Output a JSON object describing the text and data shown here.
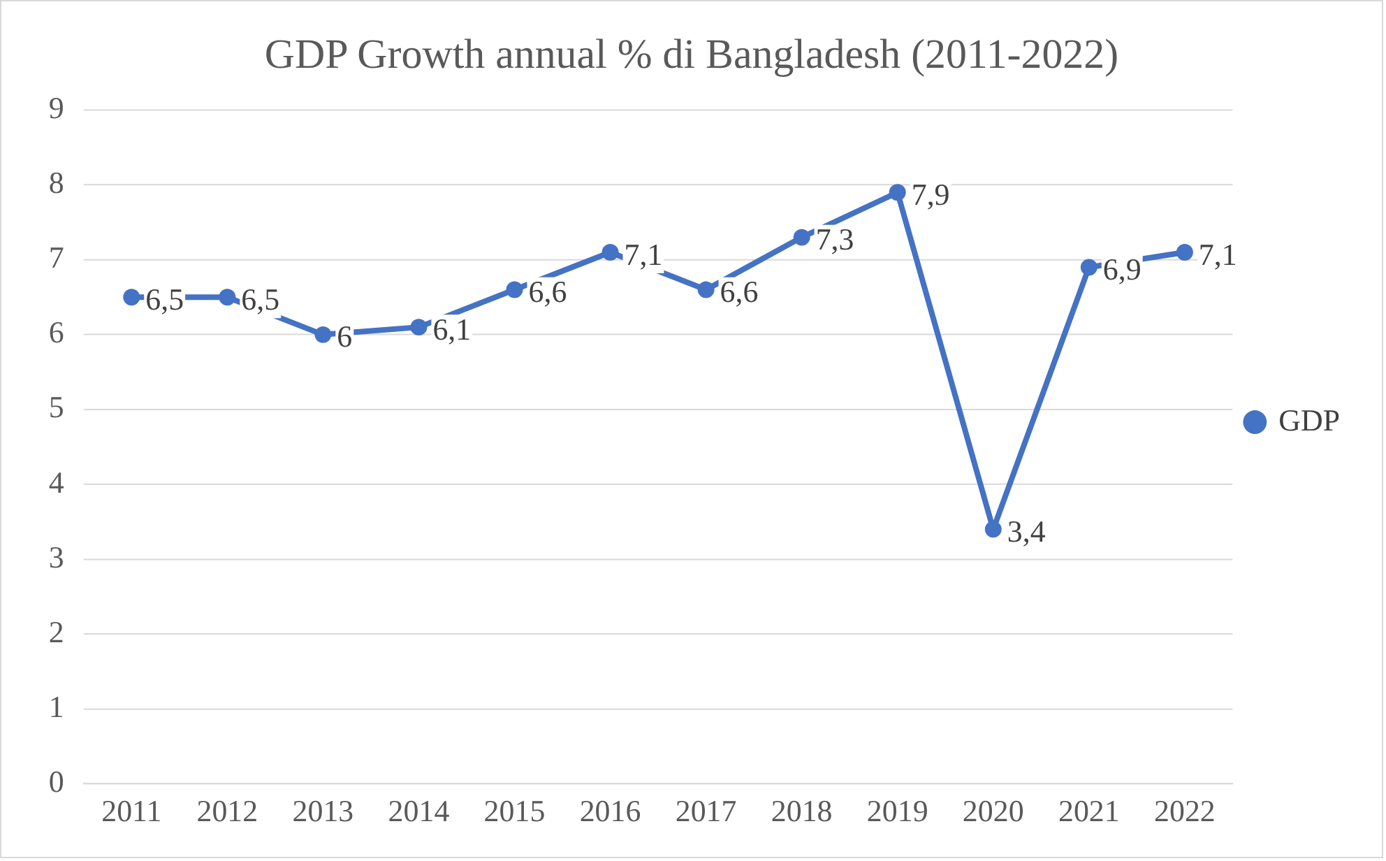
{
  "chart_data": {
    "type": "line",
    "title": "GDP Growth annual % di Bangladesh (2011-2022)",
    "categories": [
      "2011",
      "2012",
      "2013",
      "2014",
      "2015",
      "2016",
      "2017",
      "2018",
      "2019",
      "2020",
      "2021",
      "2022"
    ],
    "series": [
      {
        "name": "GDP",
        "color": "#4472c4",
        "values": [
          6.5,
          6.5,
          6,
          6.1,
          6.6,
          7.1,
          6.6,
          7.3,
          7.9,
          3.4,
          6.9,
          7.1
        ],
        "value_labels": [
          "6,5",
          "6,5",
          "6",
          "6,1",
          "6,6",
          "7,1",
          "6,6",
          "7,3",
          "7,9",
          "3,4",
          "6,9",
          "7,1"
        ]
      }
    ],
    "ylim": [
      0,
      9
    ],
    "yticks": [
      0,
      1,
      2,
      3,
      4,
      5,
      6,
      7,
      8,
      9
    ],
    "grid": "y",
    "legend": "right",
    "marker": "circle",
    "line_style": "solid"
  }
}
